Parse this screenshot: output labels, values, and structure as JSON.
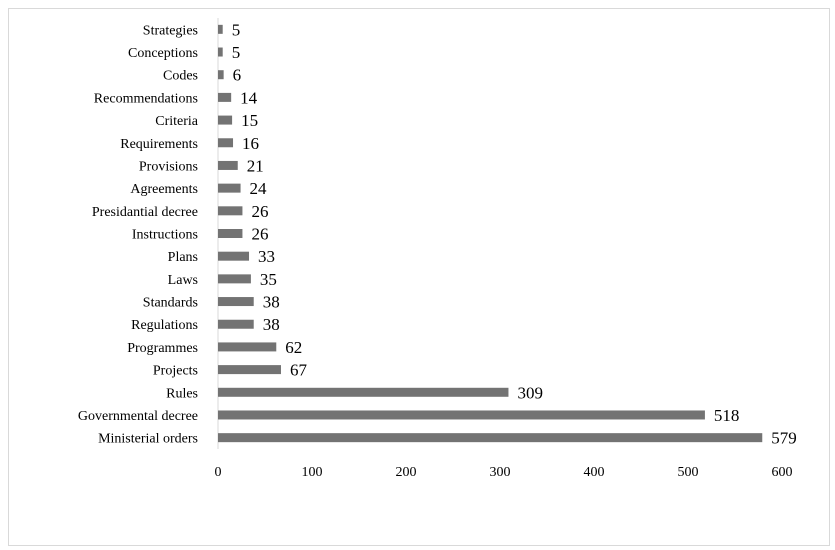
{
  "chart_data": {
    "type": "bar",
    "orientation": "horizontal",
    "categories": [
      "Strategies",
      "Conceptions",
      "Codes",
      "Recommendations",
      "Criteria",
      "Requirements",
      "Provisions",
      "Agreements",
      "Presidantial decree",
      "Instructions",
      "Plans",
      "Laws",
      "Standards",
      "Regulations",
      "Programmes",
      "Projects",
      "Rules",
      "Governmental decree",
      "Ministerial orders"
    ],
    "values": [
      5,
      5,
      6,
      14,
      15,
      16,
      21,
      24,
      26,
      26,
      33,
      35,
      38,
      38,
      62,
      67,
      309,
      518,
      579
    ],
    "xlim": [
      0,
      600
    ],
    "xticks": [
      "0",
      "100",
      "200",
      "300",
      "400",
      "500",
      "600"
    ],
    "title": "",
    "xlabel": "",
    "ylabel": "",
    "grid": false,
    "legend": "none",
    "bar_color": "#737373"
  }
}
